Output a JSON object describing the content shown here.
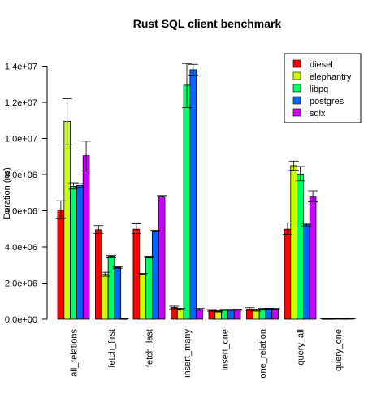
{
  "chart_data": {
    "type": "bar",
    "title": "Rust SQL client benchmark",
    "xlabel": "",
    "ylabel": "Duration (ns)",
    "ylim": [
      0,
      14500000
    ],
    "y_ticks": [
      0,
      2000000,
      4000000,
      6000000,
      8000000,
      10000000,
      12000000,
      14000000
    ],
    "y_tick_labels": [
      "0.0e+00",
      "2.0e+06",
      "4.0e+06",
      "6.0e+06",
      "8.0e+06",
      "1.0e+07",
      "1.2e+07",
      "1.4e+07"
    ],
    "grid": false,
    "legend_position": "top-right",
    "error_bars": true,
    "categories": [
      "all_relations",
      "fetch_first",
      "fetch_last",
      "insert_many",
      "insert_one",
      "one_relation",
      "query_all",
      "query_one"
    ],
    "series": [
      {
        "name": "diesel",
        "color": "#ff0000",
        "values": [
          6050000,
          4950000,
          4980000,
          650000,
          490000,
          560000,
          4980000,
          18000
        ],
        "error_low": [
          5600000,
          4750000,
          4750000,
          580000,
          450000,
          490000,
          4700000,
          15000
        ],
        "error_high": [
          6550000,
          5180000,
          5280000,
          720000,
          540000,
          640000,
          5330000,
          22000
        ]
      },
      {
        "name": "elephantry",
        "color": "#ccff00",
        "values": [
          10950000,
          2480000,
          2500000,
          560000,
          430000,
          500000,
          8500000,
          20000
        ],
        "error_low": [
          9650000,
          2380000,
          2460000,
          510000,
          400000,
          450000,
          8250000,
          16000
        ],
        "error_high": [
          12200000,
          2600000,
          2540000,
          610000,
          470000,
          560000,
          8750000,
          25000
        ]
      },
      {
        "name": "libpq",
        "color": "#00ff66",
        "values": [
          7350000,
          3480000,
          3450000,
          12950000,
          520000,
          560000,
          8030000,
          26000
        ],
        "error_low": [
          7200000,
          3440000,
          3420000,
          11700000,
          490000,
          520000,
          7650000,
          22000
        ],
        "error_high": [
          7550000,
          3520000,
          3490000,
          14150000,
          550000,
          600000,
          8450000,
          30000
        ]
      },
      {
        "name": "postgres",
        "color": "#0066ff",
        "values": [
          7400000,
          2860000,
          4880000,
          13800000,
          520000,
          580000,
          5230000,
          22000
        ],
        "error_low": [
          7300000,
          2820000,
          4840000,
          13500000,
          490000,
          550000,
          5160000,
          18000
        ],
        "error_high": [
          7500000,
          2900000,
          4920000,
          14100000,
          550000,
          610000,
          5300000,
          27000
        ]
      },
      {
        "name": "sqlx",
        "color": "#cc00ff",
        "values": [
          9050000,
          18000,
          6800000,
          550000,
          530000,
          570000,
          6800000,
          28000
        ],
        "error_low": [
          8200000,
          15000,
          6760000,
          500000,
          500000,
          540000,
          6500000,
          22000
        ],
        "error_high": [
          9850000,
          22000,
          6840000,
          600000,
          560000,
          600000,
          7100000,
          34000
        ]
      }
    ]
  }
}
